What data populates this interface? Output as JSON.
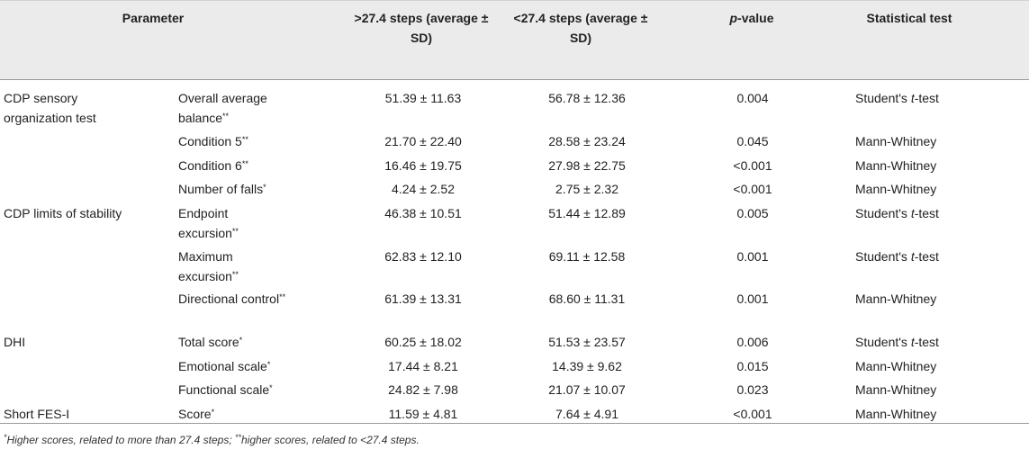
{
  "headers": {
    "parameter": "Parameter",
    "gt": ">27.4 steps (average ± SD)",
    "lt": "<27.4 steps (average ± SD)",
    "p_prefix": "p",
    "p_suffix": "-value",
    "test": "Statistical test"
  },
  "groups": [
    {
      "label": "CDP sensory organization test"
    },
    {
      "label": "CDP limits of stability"
    },
    {
      "label": "DHI"
    },
    {
      "label": "Short FES-I"
    }
  ],
  "rows": [
    {
      "param": "Overall average balance",
      "mark": "**",
      "gt": "51.39 ± 11.63",
      "lt": "56.78 ± 12.36",
      "p": "0.004",
      "test_pre": "Student's ",
      "test_it": "t",
      "test_post": "-test"
    },
    {
      "param": "Condition 5",
      "mark": "**",
      "gt": "21.70 ± 22.40",
      "lt": "28.58 ± 23.24",
      "p": "0.045",
      "test_pre": "Mann-Whitney",
      "test_it": "",
      "test_post": ""
    },
    {
      "param": "Condition 6",
      "mark": "**",
      "gt": "16.46 ± 19.75",
      "lt": "27.98 ± 22.75",
      "p": "<0.001",
      "test_pre": "Mann-Whitney",
      "test_it": "",
      "test_post": ""
    },
    {
      "param": "Number of falls",
      "mark": "*",
      "gt": "4.24 ± 2.52",
      "lt": "2.75 ± 2.32",
      "p": "<0.001",
      "test_pre": "Mann-Whitney",
      "test_it": "",
      "test_post": ""
    },
    {
      "param": "Endpoint excursion",
      "mark": "**",
      "gt": "46.38 ± 10.51",
      "lt": "51.44 ± 12.89",
      "p": "0.005",
      "test_pre": "Student's ",
      "test_it": "t",
      "test_post": "-test"
    },
    {
      "param": "Maximum excursion",
      "mark": "**",
      "gt": "62.83 ± 12.10",
      "lt": "69.11 ± 12.58",
      "p": "0.001",
      "test_pre": "Student's ",
      "test_it": "t",
      "test_post": "-test"
    },
    {
      "param": "Directional control",
      "mark": "**",
      "gt": "61.39 ± 13.31",
      "lt": "68.60 ± 11.31",
      "p": "0.001",
      "test_pre": "Mann-Whitney",
      "test_it": "",
      "test_post": ""
    },
    {
      "param": "Total score",
      "mark": "*",
      "gt": "60.25 ± 18.02",
      "lt": "51.53 ± 23.57",
      "p": "0.006",
      "test_pre": "Student's ",
      "test_it": "t",
      "test_post": "-test"
    },
    {
      "param": "Emotional scale",
      "mark": "*",
      "gt": "17.44 ± 8.21",
      "lt": "14.39 ± 9.62",
      "p": "0.015",
      "test_pre": "Mann-Whitney",
      "test_it": "",
      "test_post": ""
    },
    {
      "param": "Functional scale",
      "mark": "*",
      "gt": "24.82 ± 7.98",
      "lt": "21.07 ± 10.07",
      "p": "0.023",
      "test_pre": "Mann-Whitney",
      "test_it": "",
      "test_post": ""
    },
    {
      "param": "Score",
      "mark": "*",
      "gt": "11.59 ± 4.81",
      "lt": "7.64 ± 4.91",
      "p": "<0.001",
      "test_pre": "Mann-Whitney",
      "test_it": "",
      "test_post": ""
    }
  ],
  "footnote": {
    "mark1": "*",
    "text1": "Higher scores, related to more than 27.4 steps; ",
    "mark2": "**",
    "text2": "higher scores, related to <27.4 steps."
  }
}
